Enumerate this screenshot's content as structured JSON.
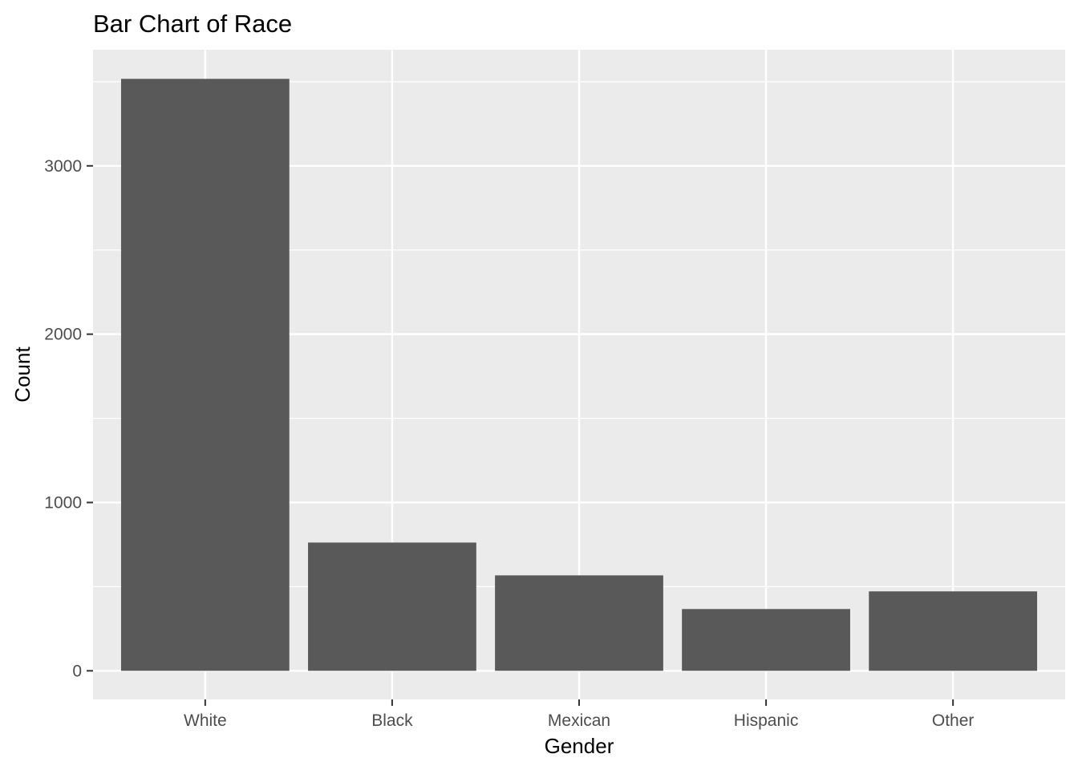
{
  "colors": {
    "panel_background": "#ebebeb",
    "grid_major": "#ffffff",
    "bar_fill": "#595959",
    "tick_color": "#333333",
    "tick_label": "#4d4d4d"
  },
  "chart_data": {
    "type": "bar",
    "title": "Bar Chart of Race",
    "xlabel": "Gender",
    "ylabel": "Count",
    "categories": [
      "White",
      "Black",
      "Mexican",
      "Hispanic",
      "Other"
    ],
    "values": [
      3517,
      762,
      567,
      367,
      472
    ],
    "ylim": [
      -170,
      3690
    ],
    "yticks": [
      0,
      1000,
      2000,
      3000
    ],
    "ytick_labels": [
      "0",
      "1000",
      "2000",
      "3000"
    ],
    "grid": true,
    "legend": "none"
  }
}
